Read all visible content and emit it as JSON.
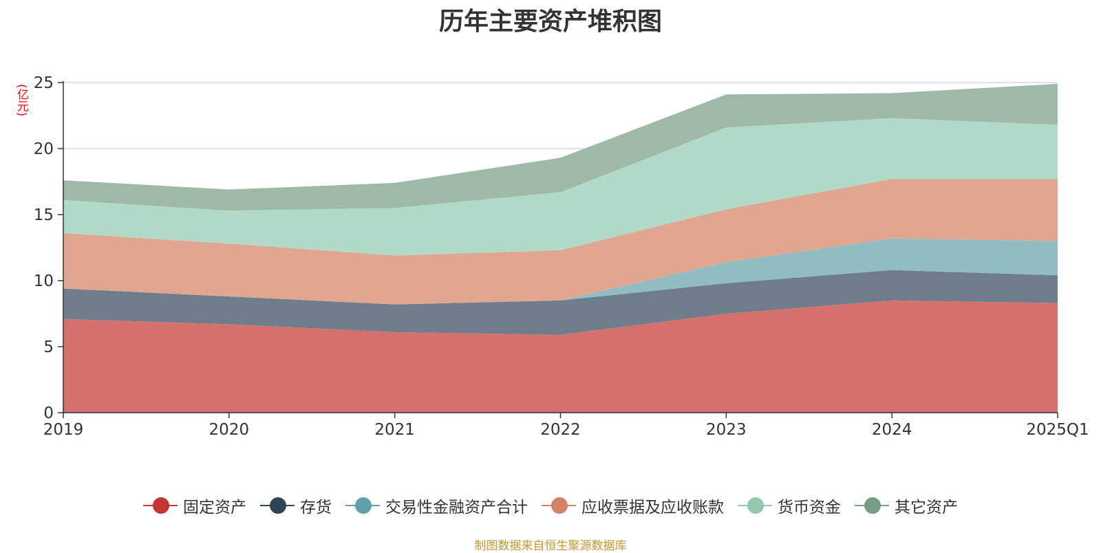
{
  "chart_data": {
    "type": "area",
    "stacked": true,
    "title": "历年主要资产堆积图",
    "ylabel": "(亿元)",
    "xlabel": "",
    "categories": [
      "2019",
      "2020",
      "2021",
      "2022",
      "2023",
      "2024",
      "2025Q1"
    ],
    "ylim": [
      0,
      25
    ],
    "yticks": [
      "0",
      "5",
      "10",
      "15",
      "20",
      "25"
    ],
    "grid": true,
    "legend_position": "bottom",
    "series": [
      {
        "name": "固定资产",
        "color": "#c23531",
        "fill": "#d4716e",
        "values": [
          7.1,
          6.7,
          6.1,
          5.9,
          7.5,
          8.5,
          8.3
        ]
      },
      {
        "name": "存货",
        "color": "#2f4554",
        "fill": "#6e7d89",
        "values": [
          2.3,
          2.1,
          2.1,
          2.6,
          2.3,
          2.3,
          2.1
        ]
      },
      {
        "name": "交易性金融资产合计",
        "color": "#61a0a8",
        "fill": "#90bcc2",
        "values": [
          0,
          0,
          0,
          0,
          1.6,
          2.4,
          2.6
        ]
      },
      {
        "name": "应收票据及应收账款",
        "color": "#d48265",
        "fill": "#e0a690",
        "values": [
          4.2,
          4.0,
          3.7,
          3.8,
          4.0,
          4.5,
          4.7
        ]
      },
      {
        "name": "货币资金",
        "color": "#91c7ae",
        "fill": "#b1d9c7",
        "values": [
          2.5,
          2.5,
          3.6,
          4.4,
          6.2,
          4.6,
          4.1
        ]
      },
      {
        "name": "其它资产",
        "color": "#749f83",
        "fill": "#9eb9a7",
        "values": [
          1.5,
          1.6,
          1.9,
          2.6,
          2.5,
          1.9,
          3.1
        ]
      }
    ]
  },
  "footer": {
    "source": "制图数据来自恒生聚源数据库"
  }
}
